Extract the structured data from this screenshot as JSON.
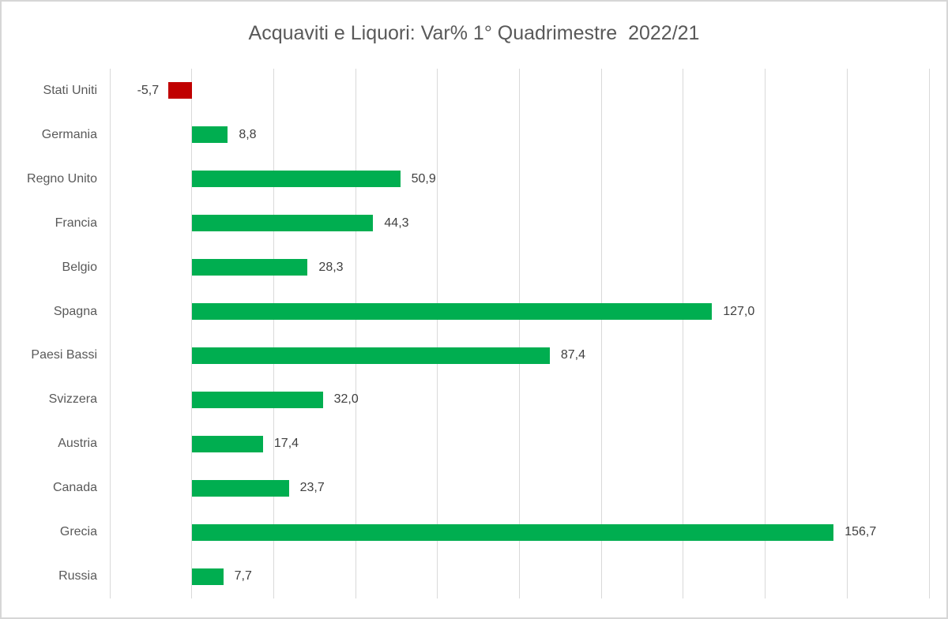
{
  "chart_data": {
    "type": "bar",
    "orientation": "horizontal",
    "title": "Acquaviti e Liquori: Var% 1° Quadrimestre  2022/21",
    "categories": [
      "Stati Uniti",
      "Germania",
      "Regno Unito",
      "Francia",
      "Belgio",
      "Spagna",
      "Paesi Bassi",
      "Svizzera",
      "Austria",
      "Canada",
      "Grecia",
      "Russia"
    ],
    "values": [
      -5.7,
      8.8,
      50.9,
      44.3,
      28.3,
      127.0,
      87.4,
      32.0,
      17.4,
      23.7,
      156.7,
      7.7
    ],
    "value_labels": [
      "-5,7",
      "8,8",
      "50,9",
      "44,3",
      "28,3",
      "127,0",
      "87,4",
      "32,0",
      "17,4",
      "23,7",
      "156,7",
      "7,7"
    ],
    "xlabel": "",
    "ylabel": "",
    "xlim": [
      -20,
      180
    ],
    "grid_step": 20,
    "grid": true,
    "legend": "none",
    "colors": {
      "positive": "#00ae50",
      "negative": "#c00000",
      "gridline": "#d9d9d9",
      "title_text": "#595959",
      "category_text": "#595959",
      "value_text": "#404040",
      "frame_border": "#d6d6d6",
      "background": "#ffffff"
    }
  }
}
